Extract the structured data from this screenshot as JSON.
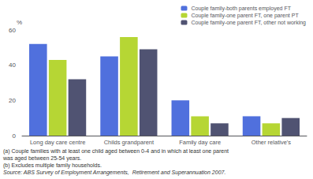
{
  "chart_data": {
    "type": "bar",
    "categories": [
      "Long day care centre",
      "Childs grandparent",
      "Family day care",
      "Other relative's"
    ],
    "series": [
      {
        "name": "Couple family-both parents employed FT",
        "values": [
          52,
          45,
          20,
          11
        ]
      },
      {
        "name": "Couple family-one parent FT, one parent PT",
        "values": [
          43,
          56,
          11,
          7
        ]
      },
      {
        "name": "Couple family-one parent FT, other not working",
        "values": [
          32,
          49,
          7,
          10
        ]
      }
    ],
    "ylabel": "%",
    "ylim": [
      0,
      60
    ],
    "yticks": [
      0,
      20,
      40,
      60
    ],
    "grid": false,
    "legend": "upper right",
    "annotations": [
      "(a) Couple families with at least one child aged between 0-4 and in which at least one parent",
      "was aged between 25-54 years.",
      "(b) Excludes multiple family households.",
      "Source: ABS Survey of Employment Arrangements,  Retirement and Superannuation 2007."
    ]
  }
}
